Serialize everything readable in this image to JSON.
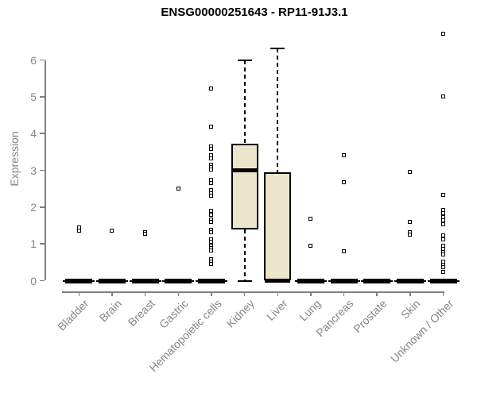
{
  "chart_data": {
    "type": "boxplot",
    "title": "ENSG00000251643 - RP11-91J3.1",
    "xlabel": "",
    "ylabel": "Expression",
    "ylim": [
      0,
      6.8
    ],
    "yticks": [
      0,
      1,
      2,
      3,
      4,
      5,
      6
    ],
    "grid": false,
    "legend": null,
    "categories": [
      "Bladder",
      "Brain",
      "Breast",
      "Gastric",
      "Hematopoietic cells",
      "Kidney",
      "Liver",
      "Lung",
      "Pancreas",
      "Prostate",
      "Skin",
      "Unknown / Other"
    ],
    "boxes": [
      {
        "category": "Bladder",
        "q1": 0,
        "median": 0,
        "q3": 0,
        "whisker_low": 0,
        "whisker_high": 0,
        "outliers": [
          1.45,
          1.35
        ]
      },
      {
        "category": "Brain",
        "q1": 0,
        "median": 0,
        "q3": 0,
        "whisker_low": 0,
        "whisker_high": 0,
        "outliers": [
          1.35
        ]
      },
      {
        "category": "Breast",
        "q1": 0,
        "median": 0,
        "q3": 0,
        "whisker_low": 0,
        "whisker_high": 0,
        "outliers": [
          1.32,
          1.27
        ]
      },
      {
        "category": "Gastric",
        "q1": 0,
        "median": 0,
        "q3": 0,
        "whisker_low": 0,
        "whisker_high": 0,
        "outliers": [
          2.5
        ]
      },
      {
        "category": "Hematopoietic cells",
        "q1": 0,
        "median": 0,
        "q3": 0,
        "whisker_low": 0,
        "whisker_high": 0,
        "outliers": [
          5.22,
          4.18,
          3.65,
          3.58,
          3.42,
          3.33,
          3.15,
          3.08,
          3.02,
          2.75,
          2.65,
          2.47,
          2.38,
          2.31,
          1.89,
          1.8,
          1.67,
          1.59,
          1.39,
          1.31,
          1.13,
          1.06,
          0.95,
          0.89,
          0.82,
          0.59,
          0.52,
          0.45
        ]
      },
      {
        "category": "Kidney",
        "q1": 1.4,
        "median": 3.0,
        "q3": 3.72,
        "whisker_low": 0,
        "whisker_high": 6.0,
        "outliers": []
      },
      {
        "category": "Liver",
        "q1": 0,
        "median": 0,
        "q3": 2.95,
        "whisker_low": 0,
        "whisker_high": 6.32,
        "outliers": []
      },
      {
        "category": "Lung",
        "q1": 0,
        "median": 0,
        "q3": 0,
        "whisker_low": 0,
        "whisker_high": 0,
        "outliers": [
          1.68,
          0.95
        ]
      },
      {
        "category": "Pancreas",
        "q1": 0,
        "median": 0,
        "q3": 0,
        "whisker_low": 0,
        "whisker_high": 0,
        "outliers": [
          3.42,
          2.67,
          0.8
        ]
      },
      {
        "category": "Prostate",
        "q1": 0,
        "median": 0,
        "q3": 0,
        "whisker_low": 0,
        "whisker_high": 0,
        "outliers": []
      },
      {
        "category": "Skin",
        "q1": 0,
        "median": 0,
        "q3": 0,
        "whisker_low": 0,
        "whisker_high": 0,
        "outliers": [
          2.95,
          1.6,
          1.32,
          1.25
        ]
      },
      {
        "category": "Unknown / Other",
        "q1": 0,
        "median": 0,
        "q3": 0,
        "whisker_low": 0,
        "whisker_high": 0,
        "outliers": [
          6.71,
          5.0,
          2.33,
          1.93,
          1.83,
          1.73,
          1.64,
          1.54,
          1.23,
          1.13,
          0.95,
          0.86,
          0.78,
          0.71,
          0.52,
          0.44,
          0.36,
          0.23
        ]
      }
    ],
    "colors": {
      "box_fill": "#EBE5CC",
      "box_border": "#000000",
      "median": "#000000",
      "whisker": "#000000",
      "outlier_border": "#000000",
      "outlier_fill": "#ffffff",
      "axis": "#7f7f7f",
      "axis_text": "#858585",
      "title": "#000000",
      "background": "#ffffff"
    }
  }
}
